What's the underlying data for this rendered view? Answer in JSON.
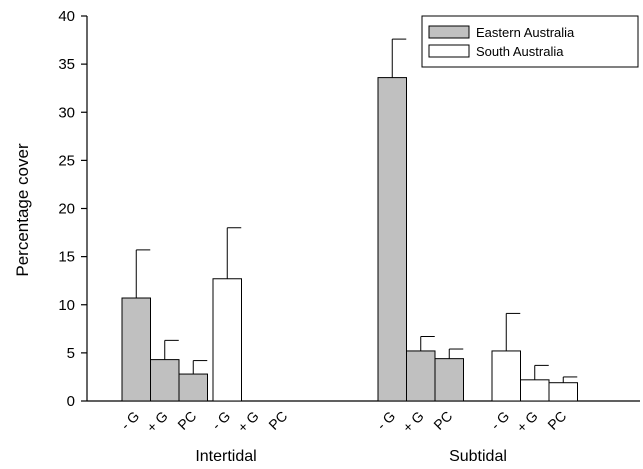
{
  "chart_data": {
    "type": "bar",
    "ylabel": "Percentage cover",
    "ylim": [
      0,
      40
    ],
    "yticks": [
      0,
      5,
      10,
      15,
      20,
      25,
      30,
      35,
      40
    ],
    "groups": [
      "Intertidal",
      "Subtidal"
    ],
    "treatments": [
      "- G",
      "+ G",
      "PC"
    ],
    "legend": {
      "placement": "top-right"
    },
    "series": [
      {
        "name": "Eastern Australia",
        "fill": "#c0c0c0",
        "values": [
          [
            10.7,
            4.3,
            2.8
          ],
          [
            33.6,
            5.2,
            4.4
          ]
        ],
        "errors": [
          [
            5.0,
            2.0,
            1.4
          ],
          [
            4.0,
            1.5,
            1.0
          ]
        ]
      },
      {
        "name": "South Australia",
        "fill": "#ffffff",
        "values": [
          [
            12.7,
            0,
            0
          ],
          [
            5.2,
            2.2,
            1.9
          ]
        ],
        "errors": [
          [
            5.3,
            0,
            0
          ],
          [
            3.9,
            1.5,
            0.6
          ]
        ]
      }
    ]
  }
}
